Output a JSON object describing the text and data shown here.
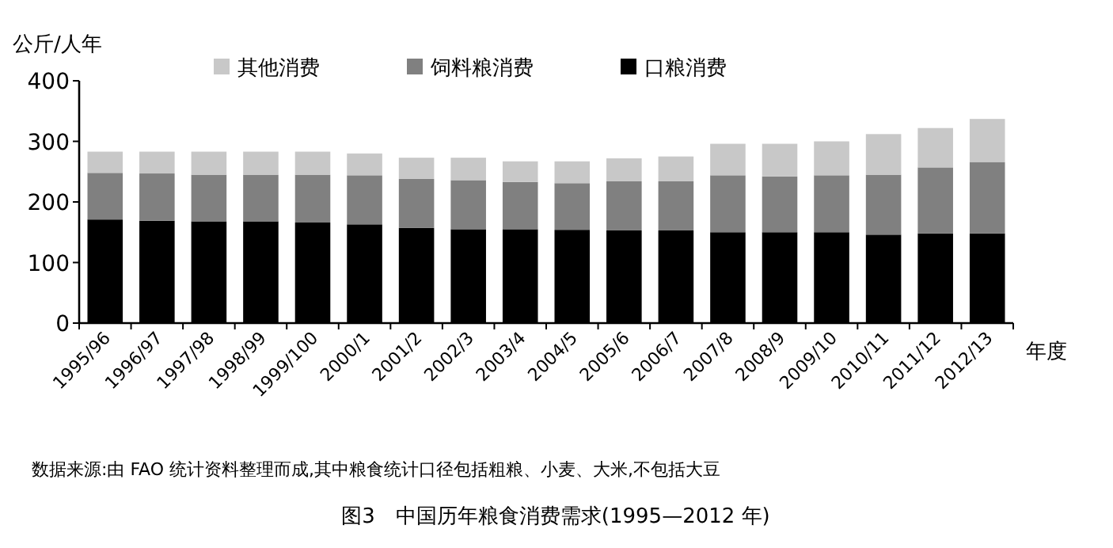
{
  "chart_data": {
    "type": "bar",
    "stacked": true,
    "title": "图3　中国历年粮食消费需求(1995—2012 年)",
    "ylabel": "公斤/人年",
    "xlabel": "年度",
    "annotations": [
      "数据来源:由 FAO 统计资料整理而成,其中粮食统计口径包括粗粮、小麦、大米,不包括大豆"
    ],
    "categories": [
      "1995/96",
      "1996/97",
      "1997/98",
      "1998/99",
      "1999/100",
      "2000/1",
      "2001/2",
      "2002/3",
      "2003/4",
      "2004/5",
      "2005/6",
      "2006/7",
      "2007/8",
      "2008/9",
      "2009/10",
      "2010/11",
      "2011/12",
      "2012/13"
    ],
    "series": [
      {
        "name": "口粮消费",
        "color": "#000000",
        "values": [
          171,
          169,
          168,
          168,
          166,
          163,
          157,
          155,
          155,
          154,
          153,
          153,
          150,
          150,
          150,
          146,
          148,
          148
        ]
      },
      {
        "name": "饲料粮消费",
        "color": "#808080",
        "values": [
          77,
          78,
          77,
          77,
          79,
          81,
          81,
          81,
          78,
          77,
          81,
          81,
          94,
          92,
          94,
          99,
          109,
          118
        ]
      },
      {
        "name": "其他消费",
        "color": "#c8c8c8",
        "values": [
          35,
          36,
          38,
          38,
          38,
          36,
          35,
          37,
          34,
          36,
          38,
          41,
          52,
          54,
          56,
          67,
          65,
          71
        ]
      }
    ],
    "ylim": [
      0,
      400
    ],
    "yticks": [
      0,
      100,
      200,
      300,
      400
    ],
    "legend": "top"
  }
}
